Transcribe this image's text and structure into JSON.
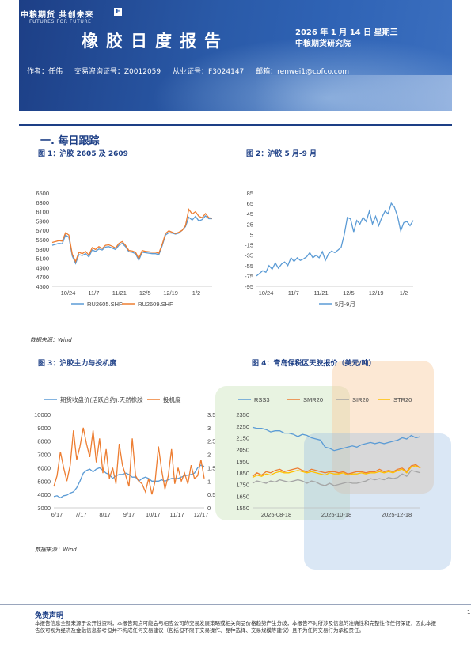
{
  "header": {
    "logo_cn": "中粮期货 共创未来",
    "logo_en": "· FUTURES FOR FUTURE ·",
    "logo_mark": "F",
    "title": "橡胶日度报告",
    "date": "2026 年 1 月 14 日 星期三",
    "institute": "中粮期货研究院",
    "author": "作者：任伟",
    "cert1": "交易咨询证号：Z0012059",
    "cert2": "从业证号：F3024147",
    "email": "邮箱：renwei1@cofco.com"
  },
  "section_title": "一. 每日跟踪",
  "figures": {
    "fig1_caption": "图 1：沪胶 2605 及 2609",
    "fig2_caption": "图 2：沪胶 5 月-9 月",
    "fig3_caption": "图 3：沪胶主力与投机度",
    "fig4_caption": "图 4：青岛保税区天胶报价（美元/吨）",
    "source1": "数据来源：Wind",
    "source2": "数据来源：Wind"
  },
  "colors": {
    "blue": "#5b9bd5",
    "orange": "#ed7d31",
    "gray": "#a5a5a5",
    "gold": "#ffc000",
    "navy": "#1d3f86"
  },
  "chart_data": [
    {
      "type": "line",
      "title": "",
      "x_ticks": [
        "10/24",
        "11/7",
        "11/21",
        "12/5",
        "12/19",
        "1/2"
      ],
      "ylim": [
        4500,
        6500
      ],
      "y_ticks": [
        4500,
        4700,
        4900,
        5100,
        5300,
        5500,
        5700,
        5900,
        6100,
        6300,
        6500
      ],
      "legend": "bottom",
      "series": [
        {
          "name": "RU2605.SHF",
          "color": "#5b9bd5",
          "values": [
            5380,
            5400,
            5420,
            5410,
            5600,
            5550,
            5150,
            4990,
            5180,
            5160,
            5200,
            5130,
            5280,
            5250,
            5300,
            5280,
            5340,
            5350,
            5320,
            5290,
            5380,
            5420,
            5350,
            5240,
            5230,
            5200,
            5060,
            5230,
            5220,
            5210,
            5200,
            5200,
            5180,
            5370,
            5600,
            5650,
            5640,
            5620,
            5640,
            5700,
            5780,
            5980,
            5920,
            6000,
            5900,
            5930,
            6010,
            5950,
            5950
          ]
        },
        {
          "name": "RU2609.SHF",
          "color": "#ed7d31",
          "values": [
            5440,
            5460,
            5480,
            5470,
            5650,
            5600,
            5190,
            5030,
            5230,
            5200,
            5250,
            5170,
            5330,
            5290,
            5350,
            5310,
            5380,
            5390,
            5360,
            5320,
            5420,
            5460,
            5380,
            5270,
            5260,
            5230,
            5100,
            5270,
            5250,
            5240,
            5230,
            5230,
            5210,
            5400,
            5630,
            5690,
            5660,
            5630,
            5660,
            5700,
            5800,
            6150,
            6050,
            6100,
            6000,
            5970,
            6060,
            5970,
            5960
          ]
        }
      ]
    },
    {
      "type": "line",
      "title": "",
      "x_ticks": [
        "10/24",
        "11/7",
        "11/21",
        "12/5",
        "12/19",
        "1/2"
      ],
      "ylim": [
        -95,
        85
      ],
      "y_ticks": [
        -95,
        -75,
        -55,
        -35,
        -15,
        5,
        25,
        45,
        65,
        85
      ],
      "legend": "bottom",
      "series": [
        {
          "name": "5月-9月",
          "color": "#5b9bd5",
          "values": [
            -75,
            -70,
            -65,
            -68,
            -55,
            -62,
            -50,
            -60,
            -52,
            -48,
            -55,
            -40,
            -47,
            -40,
            -45,
            -42,
            -38,
            -30,
            -40,
            -35,
            -40,
            -28,
            -45,
            -32,
            -27,
            -30,
            -25,
            -20,
            5,
            38,
            35,
            10,
            32,
            25,
            38,
            30,
            50,
            25,
            40,
            22,
            38,
            50,
            45,
            65,
            58,
            40,
            12,
            28,
            30,
            22,
            32
          ]
        }
      ]
    },
    {
      "type": "line",
      "title": "",
      "x_ticks": [
        "6/17",
        "7/17",
        "8/17",
        "9/17",
        "10/17",
        "11/17",
        "12/17"
      ],
      "ylim": [
        3000,
        10000
      ],
      "y_ticks": [
        3000,
        4000,
        5000,
        6000,
        7000,
        8000,
        9000,
        10000
      ],
      "y2lim": [
        0,
        3.5
      ],
      "y2_ticks": [
        0,
        0.5,
        1,
        1.5,
        2,
        2.5,
        3,
        3.5
      ],
      "legend": "top",
      "series": [
        {
          "name": "期货收盘价(活跃合约):天然橡胶",
          "color": "#5b9bd5",
          "axis": "left",
          "values": [
            3850,
            3900,
            3750,
            3900,
            3950,
            4100,
            4200,
            4500,
            5000,
            5600,
            5800,
            5900,
            5700,
            5900,
            6000,
            5800,
            5600,
            5500,
            5200,
            5400,
            5500,
            5500,
            5600,
            5500,
            5300,
            5300,
            5000,
            5200,
            5300,
            5200,
            5000,
            5000,
            5000,
            5100,
            5000,
            5100,
            5200,
            5200,
            5200,
            5300,
            5400,
            5450,
            5500,
            5600,
            6000,
            6200,
            6100
          ]
        },
        {
          "name": "投机度",
          "color": "#ed7d31",
          "axis": "right",
          "values": [
            0.8,
            1.2,
            2.1,
            1.5,
            1.0,
            1.6,
            2.9,
            1.8,
            2.3,
            3.0,
            2.4,
            1.9,
            2.9,
            1.7,
            2.6,
            1.3,
            2.2,
            1.1,
            1.5,
            0.9,
            2.4,
            1.6,
            1.2,
            0.8,
            2.6,
            1.2,
            1.0,
            0.9,
            0.6,
            1.1,
            0.5,
            1.0,
            2.3,
            1.4,
            0.7,
            1.2,
            2.2,
            0.9,
            1.5,
            1.0,
            1.3,
            0.9,
            1.6,
            1.1,
            1.2,
            1.8,
            1.1
          ]
        }
      ]
    },
    {
      "type": "line",
      "title": "",
      "x_ticks": [
        "2025-08-18",
        "2025-10-18",
        "2025-12-18"
      ],
      "ylim": [
        1550,
        2350
      ],
      "y_ticks": [
        1550,
        1650,
        1750,
        1850,
        1950,
        2050,
        2150,
        2250,
        2350
      ],
      "legend": "top",
      "series": [
        {
          "name": "RSS3",
          "color": "#5b9bd5",
          "values": [
            2240,
            2230,
            2230,
            2220,
            2200,
            2210,
            2210,
            2190,
            2190,
            2180,
            2160,
            2180,
            2170,
            2150,
            2140,
            2130,
            2070,
            2060,
            2040,
            2050,
            2060,
            2070,
            2080,
            2070,
            2090,
            2100,
            2110,
            2100,
            2110,
            2100,
            2110,
            2120,
            2130,
            2150,
            2140,
            2170,
            2150,
            2160
          ]
        },
        {
          "name": "SMR20",
          "color": "#ed7d31",
          "values": [
            1820,
            1850,
            1830,
            1860,
            1850,
            1870,
            1880,
            1860,
            1870,
            1880,
            1890,
            1870,
            1860,
            1880,
            1870,
            1860,
            1850,
            1860,
            1860,
            1850,
            1860,
            1840,
            1850,
            1860,
            1860,
            1850,
            1860,
            1860,
            1880,
            1860,
            1870,
            1860,
            1880,
            1890,
            1860,
            1910,
            1920,
            1890
          ]
        },
        {
          "name": "SIR20",
          "color": "#a5a5a5",
          "values": [
            1760,
            1780,
            1770,
            1760,
            1780,
            1770,
            1790,
            1780,
            1770,
            1780,
            1790,
            1780,
            1760,
            1780,
            1770,
            1750,
            1740,
            1760,
            1740,
            1750,
            1760,
            1770,
            1760,
            1760,
            1770,
            1780,
            1800,
            1790,
            1800,
            1790,
            1810,
            1800,
            1810,
            1840,
            1820,
            1870,
            1860,
            1850
          ]
        },
        {
          "name": "STR20",
          "color": "#ffc000",
          "values": [
            1810,
            1830,
            1820,
            1840,
            1830,
            1850,
            1860,
            1850,
            1850,
            1860,
            1870,
            1860,
            1850,
            1860,
            1850,
            1840,
            1830,
            1850,
            1840,
            1840,
            1850,
            1830,
            1840,
            1840,
            1850,
            1840,
            1850,
            1850,
            1860,
            1850,
            1860,
            1850,
            1870,
            1880,
            1850,
            1900,
            1910,
            1890
          ]
        }
      ]
    }
  ],
  "disclaimer": {
    "title": "免责声明",
    "text": "本报告信息全部来源于公开性资料，本报告观点可能会与相应公司的交易发展策略或相关商品价格趋势产生分歧，本报告不对所涉及信息的准确性和完整性作任何保证，因此本报告仅可视为经济及金融信息参考但并不构成任何交易建议（包括但不限于交易操作、品种选择、交易规模等建议）且不为任何交易行为承担责任。",
    "page": "1"
  }
}
